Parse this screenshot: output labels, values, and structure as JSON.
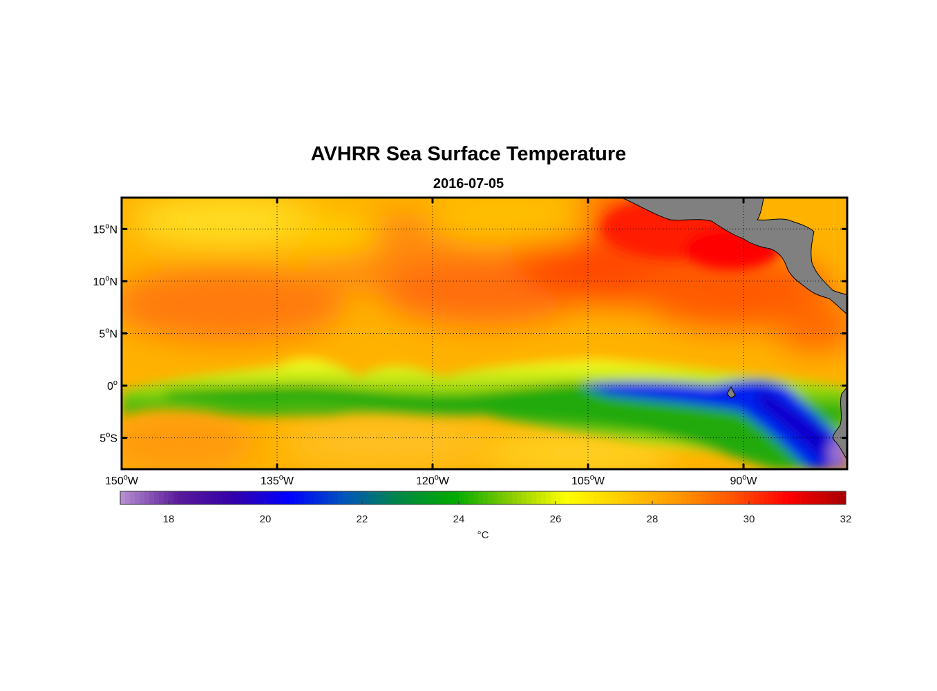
{
  "title": "AVHRR Sea Surface Temperature",
  "subtitle": "2016-07-05",
  "map": {
    "lon_range": [
      -150,
      -80
    ],
    "lat_range": [
      -8,
      18
    ],
    "land_color": "#808080",
    "grid": "dotted",
    "lon_ticks": [
      {
        "value": -150,
        "num": "150",
        "hemi": "W"
      },
      {
        "value": -135,
        "num": "135",
        "hemi": "W"
      },
      {
        "value": -120,
        "num": "120",
        "hemi": "W"
      },
      {
        "value": -105,
        "num": "105",
        "hemi": "W"
      },
      {
        "value": -90,
        "num": "90",
        "hemi": "W"
      }
    ],
    "lat_ticks": [
      {
        "value": 15,
        "num": "15",
        "hemi": "N"
      },
      {
        "value": 10,
        "num": "10",
        "hemi": "N"
      },
      {
        "value": 5,
        "num": "5",
        "hemi": "N"
      },
      {
        "value": 0,
        "num": "0",
        "hemi": ""
      },
      {
        "value": -5,
        "num": "5",
        "hemi": "S"
      }
    ],
    "degree_symbol": "o"
  },
  "colorbar": {
    "min": 17,
    "max": 32,
    "ticks": [
      "18",
      "20",
      "22",
      "24",
      "26",
      "28",
      "30",
      "32"
    ],
    "label": "°C",
    "colors": [
      "#b48ccf",
      "#5a1a9a",
      "#3300aa",
      "#0000ff",
      "#0055bb",
      "#008844",
      "#00aa00",
      "#88cc00",
      "#ffff00",
      "#ffcc00",
      "#ff9900",
      "#ff5500",
      "#ff0000",
      "#aa0000"
    ]
  }
}
